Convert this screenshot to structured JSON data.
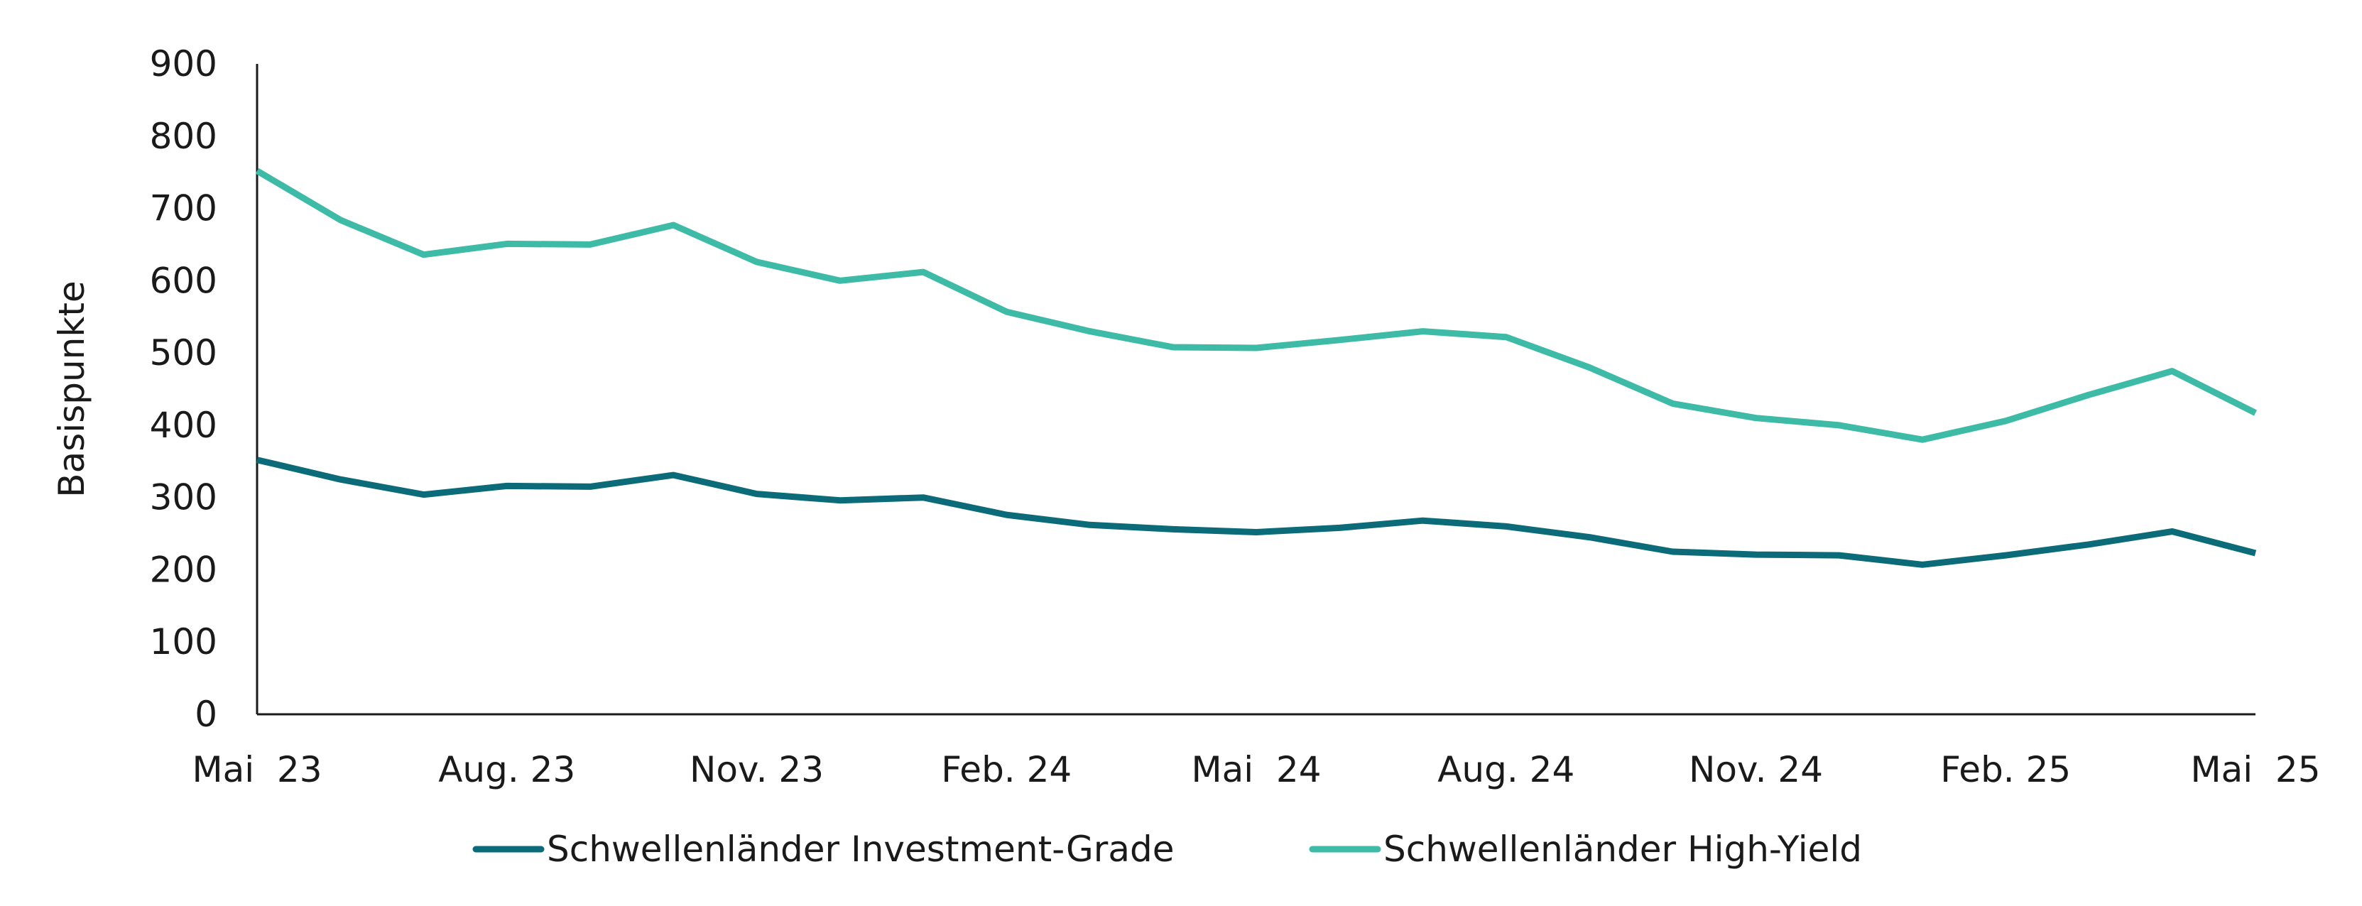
{
  "chart_data": {
    "type": "line",
    "title": "",
    "ylabel": "Basispunkte",
    "xlabel": "",
    "ylim": [
      0,
      900
    ],
    "yticks": [
      "0",
      "100",
      "200",
      "300",
      "400",
      "500",
      "600",
      "700",
      "800",
      "900"
    ],
    "x_tick_labels": [
      "Mai  23",
      "Aug. 23",
      "Nov. 23",
      "Feb. 24",
      "Mai  24",
      "Aug. 24",
      "Nov. 24",
      "Feb. 25",
      "Mai  25"
    ],
    "x": [
      "2023-05",
      "2023-06",
      "2023-07",
      "2023-08",
      "2023-09",
      "2023-10",
      "2023-11",
      "2023-12",
      "2024-01",
      "2024-02",
      "2024-03",
      "2024-04",
      "2024-05",
      "2024-06",
      "2024-07",
      "2024-08",
      "2024-09",
      "2024-10",
      "2024-11",
      "2024-12",
      "2025-01",
      "2025-02",
      "2025-03",
      "2025-04",
      "2025-05"
    ],
    "grid": false,
    "legend_position": "bottom",
    "series": [
      {
        "name": "Schwellenländer Investment-Grade",
        "color": "#0c6b78",
        "values": [
          352,
          325,
          304,
          316,
          315,
          331,
          305,
          296,
          300,
          276,
          262,
          256,
          252,
          258,
          268,
          260,
          245,
          225,
          221,
          220,
          207,
          220,
          235,
          253,
          223
        ]
      },
      {
        "name": "Schwellenländer High-Yield",
        "color": "#3dbba7",
        "values": [
          752,
          684,
          636,
          651,
          650,
          677,
          626,
          600,
          612,
          557,
          530,
          508,
          507,
          518,
          530,
          522,
          480,
          430,
          410,
          400,
          380,
          406,
          442,
          475,
          417
        ]
      }
    ]
  }
}
